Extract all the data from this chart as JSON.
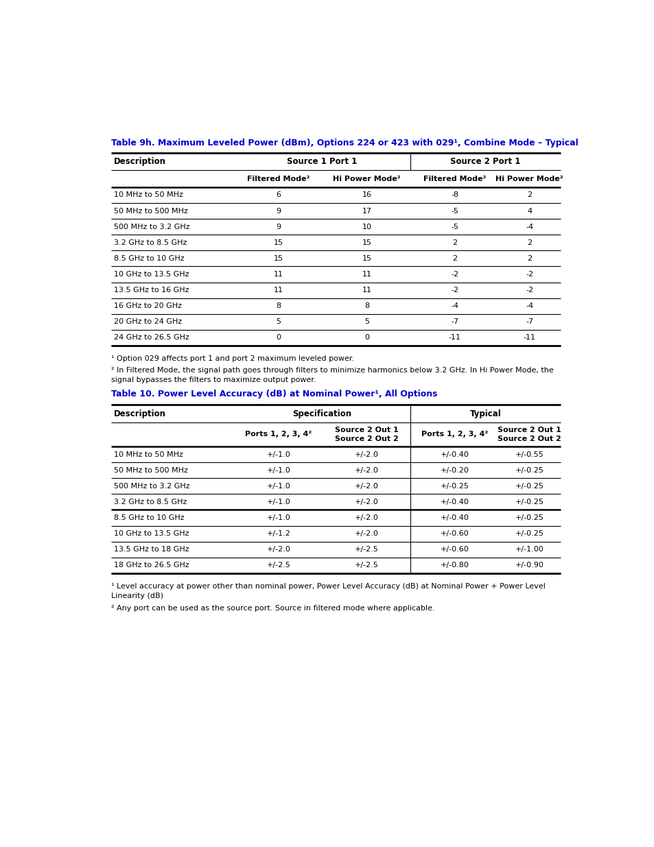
{
  "bg_color": "#ffffff",
  "title1": "Table 9h. Maximum Leveled Power (dBm), Options 224 or 423 with 029¹, Combine Mode – Typical",
  "title2": "Table 10. Power Level Accuracy (dB) at Nominal Power¹, All Options",
  "title_color": "#0000cc",
  "table1_rows": [
    [
      "10 MHz to 50 MHz",
      "6",
      "16",
      "-8",
      "2"
    ],
    [
      "50 MHz to 500 MHz",
      "9",
      "17",
      "-5",
      "4"
    ],
    [
      "500 MHz to 3.2 GHz",
      "9",
      "10",
      "-5",
      "-4"
    ],
    [
      "3.2 GHz to 8.5 GHz",
      "15",
      "15",
      "2",
      "2"
    ],
    [
      "8.5 GHz to 10 GHz",
      "15",
      "15",
      "2",
      "2"
    ],
    [
      "10 GHz to 13.5 GHz",
      "11",
      "11",
      "-2",
      "-2"
    ],
    [
      "13.5 GHz to 16 GHz",
      "11",
      "11",
      "-2",
      "-2"
    ],
    [
      "16 GHz to 20 GHz",
      "8",
      "8",
      "-4",
      "-4"
    ],
    [
      "20 GHz to 24 GHz",
      "5",
      "5",
      "-7",
      "-7"
    ],
    [
      "24 GHz to 26.5 GHz",
      "0",
      "0",
      "-11",
      "-11"
    ]
  ],
  "footnote1a": "¹ Option 029 affects port 1 and port 2 maximum leveled power.",
  "footnote1b": "² In Filtered Mode, the signal path goes through filters to minimize harmonics below 3.2 GHz. In Hi Power Mode, the signal bypasses the filters to maximize output power.",
  "table2_rows": [
    [
      "10 MHz to 50 MHz",
      "+/-1.0",
      "+/-2.0",
      "+/-0.40",
      "+/-0.55"
    ],
    [
      "50 MHz to 500 MHz",
      "+/-1.0",
      "+/-2.0",
      "+/-0.20",
      "+/-0.25"
    ],
    [
      "500 MHz to 3.2 GHz",
      "+/-1.0",
      "+/-2.0",
      "+/-0.25",
      "+/-0.25"
    ],
    [
      "3.2 GHz to 8.5 GHz",
      "+/-1.0",
      "+/-2.0",
      "+/-0.40",
      "+/-0.25"
    ],
    [
      "8.5 GHz to 10 GHz",
      "+/-1.0",
      "+/-2.0",
      "+/-0.40",
      "+/-0.25"
    ],
    [
      "10 GHz to 13.5 GHz",
      "+/-1.2",
      "+/-2.0",
      "+/-0.60",
      "+/-0.25"
    ],
    [
      "13.5 GHz to 18 GHz",
      "+/-2.0",
      "+/-2.5",
      "+/-0.60",
      "+/-1.00"
    ],
    [
      "18 GHz to 26.5 GHz",
      "+/-2.5",
      "+/-2.5",
      "+/-0.80",
      "+/-0.90"
    ]
  ],
  "table2_thick_after_row": 3,
  "footnote2a": "¹ Level accuracy at power other than nominal power, Power Level Accuracy (dB) at Nominal Power + Power Level Linearity (dB)",
  "footnote2b": "² Any port can be used as the source port. Source in filtered mode where applicable."
}
